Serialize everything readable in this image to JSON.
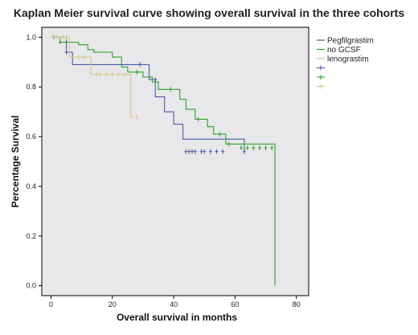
{
  "chart_data": {
    "type": "line",
    "step": true,
    "title": "Kaplan Meier survival curve showing overall survival in the three cohorts",
    "xlabel": "Overall survival in months",
    "ylabel": "Percentage Survival",
    "xlim": [
      -3,
      84
    ],
    "ylim": [
      -0.04,
      1.04
    ],
    "xticks": [
      0,
      20,
      40,
      60,
      80
    ],
    "yticks": [
      0.0,
      0.2,
      0.4,
      0.6,
      0.8,
      1.0
    ],
    "ytick_labels": [
      "0.0",
      "0.2",
      "0.4",
      "0.6",
      "0.8",
      "1.0"
    ],
    "grid": false,
    "plot_background": "#e8e8ea",
    "legend_position": "right",
    "series": [
      {
        "name": "Pegfilgrastim",
        "color": "#4b5aa3",
        "x": [
          0,
          5,
          7,
          28,
          32,
          34,
          37,
          40,
          43,
          63
        ],
        "y": [
          1.0,
          0.94,
          0.89,
          0.89,
          0.83,
          0.76,
          0.7,
          0.65,
          0.59,
          0.54
        ],
        "censored_x": [
          1,
          5,
          29,
          34,
          44,
          45,
          46,
          47,
          49,
          50,
          52,
          54,
          56,
          63
        ],
        "censored_y": [
          1.0,
          0.94,
          0.89,
          0.83,
          0.54,
          0.54,
          0.54,
          0.54,
          0.54,
          0.54,
          0.54,
          0.54,
          0.54,
          0.54
        ]
      },
      {
        "name": "no GCSF",
        "color": "#2ca02c",
        "x": [
          0,
          3,
          9,
          12,
          14,
          20,
          23,
          25,
          30,
          33,
          35,
          42,
          44,
          47,
          51,
          53,
          57,
          73,
          73
        ],
        "y": [
          1.0,
          0.98,
          0.97,
          0.95,
          0.94,
          0.92,
          0.88,
          0.86,
          0.84,
          0.82,
          0.79,
          0.75,
          0.71,
          0.67,
          0.64,
          0.61,
          0.57,
          0.55,
          0.0
        ],
        "censored_x": [
          1,
          3,
          28,
          39,
          48,
          55,
          58,
          62,
          64,
          66,
          68,
          70,
          72
        ],
        "censored_y": [
          1.0,
          0.98,
          0.86,
          0.79,
          0.67,
          0.61,
          0.57,
          0.555,
          0.555,
          0.555,
          0.555,
          0.555,
          0.555
        ]
      },
      {
        "name": "lenograstim",
        "color": "#d7c48e",
        "x": [
          0,
          6,
          13,
          26,
          27
        ],
        "y": [
          1.0,
          0.92,
          0.85,
          0.68,
          0.68
        ],
        "censored_x": [
          1,
          2,
          4,
          5,
          9,
          11,
          15,
          16,
          18,
          20,
          22,
          24,
          28
        ],
        "censored_y": [
          1.0,
          1.0,
          1.0,
          1.0,
          0.92,
          0.92,
          0.85,
          0.85,
          0.85,
          0.85,
          0.85,
          0.85,
          0.68
        ]
      }
    ]
  }
}
